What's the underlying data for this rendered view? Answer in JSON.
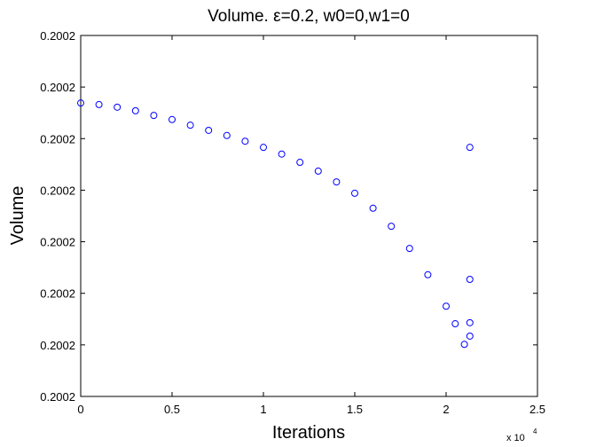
{
  "chart_data": {
    "type": "scatter",
    "title": "Volume.   ε=0.2, w0=0,w1=0",
    "x_label": "Iterations",
    "y_label": "Volume",
    "x_multiplier": "x 10",
    "x_exponent": "4",
    "color": "#0000ff",
    "x": [
      0,
      1000,
      2000,
      3000,
      4000,
      5000,
      6000,
      7000,
      8000,
      9000,
      10000,
      11000,
      12000,
      13000,
      14000,
      15000,
      16000,
      17000,
      18000,
      19000,
      20000,
      20500,
      21000,
      21300,
      21300,
      21300,
      21300
    ],
    "values": [
      0.2002169,
      0.2002166,
      0.2002161,
      0.2002154,
      0.2002145,
      0.2002137,
      0.2002126,
      0.2002116,
      0.2002106,
      0.2002095,
      0.2002083,
      0.200207,
      0.2002054,
      0.2002037,
      0.2002016,
      0.2001994,
      0.2001965,
      0.200193,
      0.2001887,
      0.2001836,
      0.2001775,
      0.2001741,
      0.2001701,
      0.2002083,
      0.2001827,
      0.2001743,
      0.2001717
    ],
    "xlim": [
      0,
      25000
    ],
    "xticks": [
      0,
      {
        "value": 5000,
        "label": "0.5"
      },
      {
        "value": 10000,
        "label": "1"
      },
      {
        "value": 15000,
        "label": "1.5"
      },
      {
        "value": 20000,
        "label": "2"
      },
      {
        "value": 25000,
        "label": "2.5"
      }
    ],
    "ylim": [
      0.20016,
      0.20023
    ],
    "yticks": [
      {
        "value": 0.20016,
        "label": "0.2002"
      },
      {
        "value": 0.20017,
        "label": "0.2002"
      },
      {
        "value": 0.20018,
        "label": "0.2002"
      },
      {
        "value": 0.20019,
        "label": "0.2002"
      },
      {
        "value": 0.2002,
        "label": "0.2002"
      },
      {
        "value": 0.20021,
        "label": "0.2002"
      },
      {
        "value": 0.20022,
        "label": "0.2002"
      },
      {
        "value": 0.20023,
        "label": "0.2002"
      }
    ]
  }
}
